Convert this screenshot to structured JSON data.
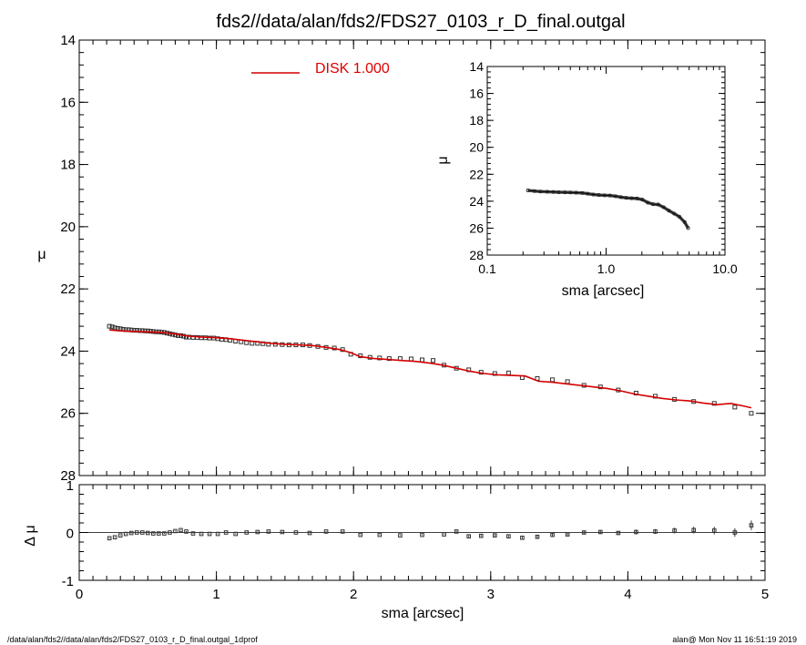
{
  "footer": {
    "left": "/data/alan/fds2//data/alan/fds2/FDS27_0103_r_D_final.outgal_1dprof",
    "right": "alan@  Mon Nov 11 16:51:19 2019"
  },
  "colors": {
    "model": "#d40000",
    "data": "#333333",
    "axes": "#000000"
  },
  "chart_data": [
    {
      "name": "main-profile",
      "type": "scatter",
      "title": "fds2//data/alan/fds2/FDS27_0103_r_D_final.outgal",
      "xlabel": "",
      "ylabel": "μ",
      "xlim": [
        0,
        5
      ],
      "ylim": [
        28,
        14
      ],
      "y_inverted": true,
      "x_ticks": [
        0,
        1,
        2,
        3,
        4,
        5
      ],
      "y_ticks": [
        14,
        16,
        18,
        20,
        22,
        24,
        26,
        28
      ],
      "legend": {
        "label": "DISK  1.000",
        "placement": "top-center"
      },
      "series": [
        {
          "name": "data",
          "marker": "square",
          "x": [
            0.22,
            0.24,
            0.26,
            0.28,
            0.3,
            0.32,
            0.34,
            0.36,
            0.38,
            0.4,
            0.42,
            0.44,
            0.46,
            0.48,
            0.5,
            0.52,
            0.54,
            0.56,
            0.58,
            0.6,
            0.62,
            0.64,
            0.66,
            0.68,
            0.7,
            0.72,
            0.74,
            0.76,
            0.78,
            0.8,
            0.83,
            0.86,
            0.89,
            0.92,
            0.95,
            0.98,
            1.01,
            1.04,
            1.07,
            1.1,
            1.14,
            1.18,
            1.22,
            1.26,
            1.3,
            1.34,
            1.38,
            1.43,
            1.48,
            1.53,
            1.58,
            1.63,
            1.68,
            1.74,
            1.8,
            1.86,
            1.92,
            1.98,
            2.05,
            2.12,
            2.19,
            2.26,
            2.34,
            2.42,
            2.5,
            2.58,
            2.66,
            2.75,
            2.84,
            2.93,
            3.03,
            3.13,
            3.23,
            3.34,
            3.45,
            3.56,
            3.68,
            3.8,
            3.93,
            4.06,
            4.2,
            4.34,
            4.48,
            4.63,
            4.78,
            4.9
          ],
          "y": [
            23.2,
            23.22,
            23.25,
            23.27,
            23.28,
            23.3,
            23.31,
            23.31,
            23.32,
            23.33,
            23.33,
            23.34,
            23.34,
            23.35,
            23.35,
            23.36,
            23.37,
            23.38,
            23.38,
            23.39,
            23.4,
            23.42,
            23.44,
            23.46,
            23.48,
            23.5,
            23.5,
            23.52,
            23.55,
            23.55,
            23.56,
            23.56,
            23.57,
            23.57,
            23.58,
            23.58,
            23.6,
            23.62,
            23.63,
            23.65,
            23.68,
            23.7,
            23.73,
            23.75,
            23.75,
            23.76,
            23.78,
            23.78,
            23.79,
            23.8,
            23.8,
            23.8,
            23.82,
            23.85,
            23.88,
            23.9,
            23.95,
            24.1,
            24.15,
            24.2,
            24.22,
            24.24,
            24.24,
            24.25,
            24.28,
            24.3,
            24.45,
            24.55,
            24.6,
            24.68,
            24.72,
            24.7,
            24.85,
            24.88,
            24.92,
            24.98,
            25.1,
            25.15,
            25.25,
            25.35,
            25.45,
            25.55,
            25.62,
            25.68,
            25.8,
            26.0
          ]
        },
        {
          "name": "DISK  1.000",
          "type": "line",
          "x": [
            0.22,
            0.3,
            0.4,
            0.5,
            0.6,
            0.7,
            0.8,
            0.9,
            1.0,
            1.1,
            1.2,
            1.3,
            1.4,
            1.5,
            1.6,
            1.7,
            1.8,
            1.9,
            1.98,
            2.05,
            2.15,
            2.25,
            2.35,
            2.45,
            2.55,
            2.65,
            2.75,
            2.85,
            2.95,
            3.05,
            3.15,
            3.25,
            3.35,
            3.45,
            3.55,
            3.65,
            3.75,
            3.85,
            3.95,
            4.05,
            4.15,
            4.25,
            4.35,
            4.45,
            4.55,
            4.65,
            4.75,
            4.85,
            4.9
          ],
          "y": [
            23.32,
            23.35,
            23.37,
            23.38,
            23.4,
            23.45,
            23.52,
            23.55,
            23.57,
            23.6,
            23.65,
            23.7,
            23.75,
            23.78,
            23.8,
            23.82,
            23.88,
            23.95,
            24.05,
            24.18,
            24.24,
            24.27,
            24.3,
            24.33,
            24.38,
            24.45,
            24.55,
            24.65,
            24.72,
            24.76,
            24.78,
            24.8,
            24.97,
            25.0,
            25.05,
            25.1,
            25.15,
            25.2,
            25.28,
            25.38,
            25.45,
            25.52,
            25.57,
            25.6,
            25.67,
            25.72,
            25.68,
            25.77,
            25.82
          ]
        }
      ]
    },
    {
      "name": "residuals",
      "type": "scatter",
      "xlabel": "sma [arcsec]",
      "ylabel": "Δ μ",
      "xlim": [
        0,
        5
      ],
      "ylim": [
        -1,
        1
      ],
      "x_ticks": [
        0,
        1,
        2,
        3,
        4,
        5
      ],
      "y_ticks": [
        -1,
        0,
        1
      ],
      "zero_line": true,
      "series": [
        {
          "name": "residual",
          "marker": "square-with-errorbar",
          "x": [
            0.22,
            0.26,
            0.3,
            0.34,
            0.38,
            0.42,
            0.46,
            0.5,
            0.54,
            0.58,
            0.62,
            0.66,
            0.7,
            0.74,
            0.78,
            0.83,
            0.89,
            0.95,
            1.01,
            1.07,
            1.14,
            1.22,
            1.3,
            1.38,
            1.48,
            1.58,
            1.68,
            1.8,
            1.92,
            2.05,
            2.19,
            2.34,
            2.5,
            2.66,
            2.75,
            2.84,
            2.93,
            3.03,
            3.13,
            3.23,
            3.34,
            3.45,
            3.56,
            3.68,
            3.8,
            3.93,
            4.06,
            4.2,
            4.34,
            4.48,
            4.63,
            4.78,
            4.9
          ],
          "y": [
            -0.12,
            -0.1,
            -0.06,
            -0.03,
            -0.01,
            0.0,
            0.0,
            -0.01,
            -0.02,
            -0.02,
            -0.02,
            0.0,
            0.03,
            0.05,
            0.02,
            -0.02,
            -0.03,
            -0.03,
            -0.03,
            0.0,
            -0.03,
            0.0,
            0.01,
            0.02,
            0.01,
            0.0,
            -0.01,
            0.02,
            0.02,
            -0.05,
            -0.05,
            -0.06,
            -0.05,
            -0.04,
            0.02,
            -0.08,
            -0.07,
            -0.06,
            -0.08,
            -0.11,
            -0.09,
            -0.05,
            -0.04,
            0.0,
            0.01,
            -0.01,
            0.01,
            0.02,
            0.04,
            0.05,
            0.04,
            0.0,
            0.15
          ],
          "err": [
            0.01,
            0.01,
            0.01,
            0.01,
            0.01,
            0.01,
            0.01,
            0.01,
            0.01,
            0.01,
            0.01,
            0.01,
            0.01,
            0.01,
            0.01,
            0.01,
            0.01,
            0.01,
            0.01,
            0.01,
            0.01,
            0.01,
            0.01,
            0.01,
            0.01,
            0.01,
            0.01,
            0.01,
            0.01,
            0.01,
            0.01,
            0.01,
            0.01,
            0.01,
            0.02,
            0.02,
            0.02,
            0.02,
            0.02,
            0.02,
            0.03,
            0.03,
            0.03,
            0.03,
            0.04,
            0.04,
            0.05,
            0.05,
            0.06,
            0.07,
            0.08,
            0.09,
            0.1
          ]
        }
      ]
    },
    {
      "name": "inset-log-profile",
      "type": "line",
      "xlabel": "sma [arcsec]",
      "ylabel": "μ",
      "x_scale": "log",
      "xlim": [
        0.1,
        10.0
      ],
      "ylim": [
        28,
        14
      ],
      "y_inverted": true,
      "x_ticks": [
        0.1,
        1.0,
        10.0
      ],
      "x_tick_labels": [
        "0.1",
        "1.0",
        "10.0"
      ],
      "y_ticks": [
        14,
        16,
        18,
        20,
        22,
        24,
        26,
        28
      ],
      "series": [
        {
          "name": "data",
          "marker": "circle",
          "x": [
            0.22,
            0.25,
            0.28,
            0.32,
            0.36,
            0.4,
            0.45,
            0.5,
            0.56,
            0.63,
            0.7,
            0.78,
            0.87,
            0.97,
            1.08,
            1.2,
            1.33,
            1.48,
            1.64,
            1.82,
            2.02,
            2.24,
            2.48,
            2.75,
            3.05,
            3.38,
            3.74,
            4.14,
            4.58,
            4.9
          ],
          "y": [
            23.2,
            23.25,
            23.28,
            23.3,
            23.32,
            23.33,
            23.34,
            23.35,
            23.37,
            23.39,
            23.44,
            23.5,
            23.54,
            23.56,
            23.58,
            23.63,
            23.7,
            23.75,
            23.78,
            23.8,
            23.88,
            24.1,
            24.22,
            24.25,
            24.45,
            24.7,
            24.92,
            25.15,
            25.55,
            26.0
          ]
        }
      ]
    }
  ]
}
